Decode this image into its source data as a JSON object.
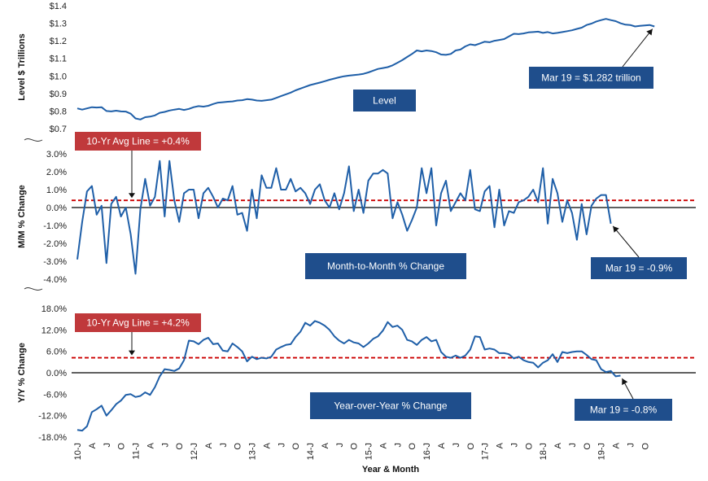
{
  "chart_data": [
    {
      "type": "line",
      "ylabel": "Level $ Trillions",
      "yticks": [
        "$1.4",
        "$1.3",
        "$1.2",
        "$1.1",
        "$1.0",
        "$0.9",
        "$0.8",
        "$0.7"
      ],
      "ylim": [
        0.7,
        1.4
      ],
      "series": [
        {
          "values": [
            0.815,
            0.808,
            0.815,
            0.822,
            0.82,
            0.822,
            0.8,
            0.798,
            0.802,
            0.798,
            0.797,
            0.785,
            0.758,
            0.752,
            0.765,
            0.768,
            0.775,
            0.79,
            0.795,
            0.803,
            0.808,
            0.812,
            0.806,
            0.812,
            0.822,
            0.828,
            0.825,
            0.83,
            0.84,
            0.848,
            0.85,
            0.853,
            0.855,
            0.86,
            0.862,
            0.868,
            0.865,
            0.86,
            0.858,
            0.862,
            0.865,
            0.875,
            0.885,
            0.895,
            0.905,
            0.918,
            0.928,
            0.938,
            0.948,
            0.955,
            0.962,
            0.97,
            0.978,
            0.985,
            0.992,
            0.998,
            1.002,
            1.005,
            1.008,
            1.012,
            1.02,
            1.03,
            1.04,
            1.045,
            1.05,
            1.06,
            1.075,
            1.09,
            1.108,
            1.125,
            1.145,
            1.14,
            1.145,
            1.142,
            1.135,
            1.122,
            1.12,
            1.125,
            1.145,
            1.15,
            1.168,
            1.18,
            1.175,
            1.185,
            1.195,
            1.192,
            1.2,
            1.205,
            1.21,
            1.225,
            1.24,
            1.238,
            1.242,
            1.248,
            1.25,
            1.252,
            1.245,
            1.25,
            1.242,
            1.245,
            1.25,
            1.255,
            1.26,
            1.268,
            1.275,
            1.29,
            1.298,
            1.31,
            1.318,
            1.325,
            1.318,
            1.312,
            1.3,
            1.292,
            1.29,
            1.282,
            1.285,
            1.288,
            1.29,
            1.282
          ]
        }
      ],
      "annotations": {
        "label": "Level",
        "callout": "Mar 19 = $1.282 trillion"
      }
    },
    {
      "type": "line",
      "ylabel": "M/M % Change",
      "yticks": [
        "3.0%",
        "2.0%",
        "1.0%",
        "0.0%",
        "-1.0%",
        "-2.0%",
        "-3.0%",
        "-4.0%"
      ],
      "ylim": [
        -4.0,
        3.0
      ],
      "avg_line": 0.4,
      "series": [
        {
          "values": [
            -2.9,
            -0.8,
            0.9,
            1.2,
            -0.4,
            0.1,
            -3.1,
            0.2,
            0.6,
            -0.5,
            0.0,
            -1.5,
            -3.7,
            -0.1,
            1.6,
            0.1,
            0.6,
            2.6,
            -0.5,
            2.6,
            0.4,
            -0.8,
            0.8,
            1.0,
            1.0,
            -0.6,
            0.8,
            1.1,
            0.6,
            0.0,
            0.5,
            0.4,
            1.2,
            -0.4,
            -0.3,
            -1.3,
            1.0,
            -0.6,
            1.8,
            1.1,
            1.1,
            2.2,
            1.0,
            1.0,
            1.6,
            0.9,
            1.1,
            0.8,
            0.2,
            1.0,
            1.3,
            0.4,
            0.0,
            0.8,
            -0.1,
            0.8,
            2.3,
            -0.2,
            1.0,
            -0.3,
            1.5,
            1.9,
            1.9,
            2.1,
            1.9,
            -0.6,
            0.3,
            -0.4,
            -1.3,
            -0.7,
            0.0,
            2.2,
            0.8,
            2.2,
            -1.0,
            0.8,
            1.5,
            -0.2,
            0.3,
            0.8,
            0.4,
            2.1,
            -0.1,
            -0.2,
            0.9,
            1.2,
            -1.1,
            1.0,
            -1.0,
            -0.2,
            -0.3,
            0.3,
            0.4,
            0.6,
            1.0,
            0.3,
            2.2,
            -0.9,
            1.6,
            0.8,
            -0.8,
            0.4,
            -0.3,
            -1.8,
            0.2,
            -1.5,
            0.1,
            0.5,
            0.7,
            0.7,
            -0.9
          ]
        }
      ],
      "annotations": {
        "label": "Month-to-Month % Change",
        "avg_label": "10-Yr Avg Line = +0.4%",
        "callout": "Mar 19 = -0.9%"
      }
    },
    {
      "type": "line",
      "ylabel": "Y/Y % Change",
      "xlabel": "Year & Month",
      "yticks": [
        "18.0%",
        "12.0%",
        "6.0%",
        "0.0%",
        "-6.0%",
        "-12.0%",
        "-18.0%"
      ],
      "ylim": [
        -18.0,
        18.0
      ],
      "avg_line": 4.2,
      "xticks": [
        "10-J",
        "A",
        "J",
        "O",
        "11-J",
        "A",
        "J",
        "O",
        "12-J",
        "A",
        "J",
        "O",
        "13-J",
        "A",
        "J",
        "O",
        "14-J",
        "A",
        "J",
        "O",
        "15-J",
        "A",
        "J",
        "O",
        "16-J",
        "A",
        "J",
        "O",
        "17-J",
        "A",
        "J",
        "O",
        "18-J",
        "A",
        "J",
        "O",
        "19-J",
        "A",
        "J",
        "O"
      ],
      "series": [
        {
          "values": [
            -16.0,
            -16.2,
            -15.0,
            -11.0,
            -10.2,
            -9.2,
            -12.0,
            -10.5,
            -8.8,
            -7.8,
            -6.2,
            -6.0,
            -6.8,
            -6.5,
            -5.5,
            -6.2,
            -4.0,
            -1.0,
            1.0,
            0.8,
            0.5,
            1.2,
            3.5,
            9.0,
            8.8,
            8.0,
            9.2,
            9.8,
            8.0,
            8.2,
            6.2,
            6.0,
            8.2,
            7.2,
            6.0,
            3.2,
            4.5,
            3.8,
            4.2,
            4.0,
            4.5,
            6.5,
            7.2,
            7.8,
            8.0,
            10.0,
            11.5,
            14.0,
            13.2,
            14.5,
            14.0,
            13.2,
            12.0,
            10.2,
            9.0,
            8.2,
            9.2,
            8.5,
            8.2,
            7.2,
            8.2,
            9.5,
            10.2,
            11.8,
            14.2,
            12.8,
            13.2,
            12.0,
            9.2,
            8.8,
            7.8,
            9.2,
            10.0,
            8.8,
            9.2,
            5.8,
            4.5,
            4.2,
            4.8,
            4.2,
            4.8,
            6.5,
            10.2,
            10.0,
            6.5,
            6.8,
            6.5,
            5.5,
            5.5,
            5.2,
            4.0,
            4.5,
            3.5,
            3.0,
            2.8,
            1.5,
            2.8,
            3.5,
            5.2,
            3.0,
            5.8,
            5.5,
            5.8,
            6.0,
            6.0,
            5.0,
            3.8,
            3.5,
            1.0,
            0.2,
            0.5,
            -1.0,
            -0.8
          ]
        }
      ],
      "annotations": {
        "label": "Year-over-Year % Change",
        "avg_label": "10-Yr Avg Line = +4.2%",
        "callout": "Mar 19 = -0.8%"
      }
    }
  ],
  "colors": {
    "line": "#1f5fa8",
    "avg_line": "#cc0000",
    "label_box": "#1f4e8c",
    "avg_box": "#c0393b",
    "zero": "#000000"
  }
}
